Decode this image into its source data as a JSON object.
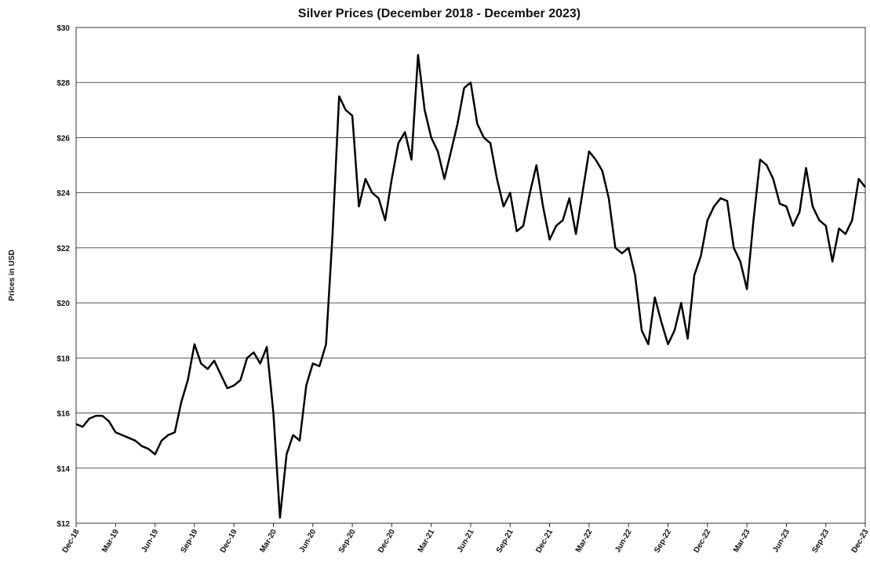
{
  "chart_data": {
    "type": "line",
    "title": "Silver Prices (December 2018 - December 2023)",
    "y_label": "Prices in USD",
    "x": [
      "Dec-18",
      null,
      null,
      null,
      null,
      null,
      "Mar-19",
      null,
      null,
      null,
      null,
      null,
      "Jun-19",
      null,
      null,
      null,
      null,
      null,
      "Sep-19",
      null,
      null,
      null,
      null,
      null,
      "Dec-19",
      null,
      null,
      null,
      null,
      null,
      "Mar-20",
      null,
      null,
      null,
      null,
      null,
      "Jun-20",
      null,
      null,
      null,
      null,
      null,
      "Sep-20",
      null,
      null,
      null,
      null,
      null,
      "Dec-20",
      null,
      null,
      null,
      null,
      null,
      "Mar-21",
      null,
      null,
      null,
      null,
      null,
      "Jun-21",
      null,
      null,
      null,
      null,
      null,
      "Sep-21",
      null,
      null,
      null,
      null,
      null,
      "Dec-21",
      null,
      null,
      null,
      null,
      null,
      "Mar-22",
      null,
      null,
      null,
      null,
      null,
      "Jun-22",
      null,
      null,
      null,
      null,
      null,
      "Sep-22",
      null,
      null,
      null,
      null,
      null,
      "Dec-22",
      null,
      null,
      null,
      null,
      null,
      "Mar-23",
      null,
      null,
      null,
      null,
      null,
      "Jun-23",
      null,
      null,
      null,
      null,
      null,
      "Sep-23",
      null,
      null,
      null,
      null,
      null,
      "Dec-23"
    ],
    "series": [
      {
        "color": "#000000",
        "values": [
          15.6,
          15.5,
          15.8,
          15.9,
          15.9,
          15.7,
          15.3,
          15.2,
          15.1,
          15.0,
          14.8,
          14.7,
          14.5,
          15.0,
          15.2,
          15.3,
          16.4,
          17.2,
          18.5,
          17.8,
          17.6,
          17.9,
          17.4,
          16.9,
          17.0,
          17.2,
          18.0,
          18.2,
          17.8,
          18.4,
          16.0,
          12.2,
          14.5,
          15.2,
          15.0,
          17.0,
          17.8,
          17.7,
          18.5,
          22.5,
          27.5,
          27.0,
          26.8,
          23.5,
          24.5,
          24.0,
          23.8,
          23.0,
          24.5,
          25.8,
          26.2,
          25.2,
          29.0,
          27.0,
          26.0,
          25.5,
          24.5,
          25.5,
          26.5,
          27.8,
          28.0,
          26.5,
          26.0,
          25.8,
          24.5,
          23.5,
          24.0,
          22.6,
          22.8,
          24.0,
          25.0,
          23.5,
          22.3,
          22.8,
          23.0,
          23.8,
          22.5,
          24.0,
          25.5,
          25.2,
          24.8,
          23.8,
          22.0,
          21.8,
          22.0,
          21.0,
          19.0,
          18.5,
          20.2,
          19.3,
          18.5,
          19.0,
          20.0,
          18.7,
          21.0,
          21.7,
          23.0,
          23.5,
          23.8,
          23.7,
          22.0,
          21.5,
          20.5,
          23.0,
          25.2,
          25.0,
          24.5,
          23.6,
          23.5,
          22.8,
          23.3,
          24.9,
          23.5,
          23.0,
          22.8,
          21.5,
          22.7,
          22.5,
          23.0,
          24.5,
          24.2
        ]
      }
    ],
    "ylim": [
      12,
      30
    ],
    "yticks": [
      {
        "value": 12,
        "label": "$12"
      },
      {
        "value": 14,
        "label": "$14"
      },
      {
        "value": 16,
        "label": "$16"
      },
      {
        "value": 18,
        "label": "$18"
      },
      {
        "value": 20,
        "label": "$20"
      },
      {
        "value": 22,
        "label": "$22"
      },
      {
        "value": 24,
        "label": "$24"
      },
      {
        "value": 26,
        "label": "$26"
      },
      {
        "value": 28,
        "label": "$28"
      },
      {
        "value": 30,
        "label": "$30"
      }
    ],
    "grid": true
  }
}
